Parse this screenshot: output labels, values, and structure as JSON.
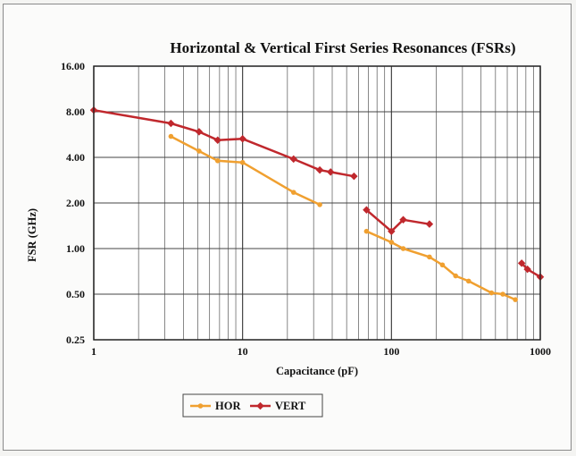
{
  "chart_data": {
    "type": "line",
    "title": "Horizontal & Vertical First Series Resonances (FSRs)",
    "xlabel": "Capacitance (pF)",
    "ylabel": "FSR (GHz)",
    "x_scale": "log",
    "y_scale": "log",
    "xlim": [
      1,
      1000
    ],
    "ylim": [
      0.25,
      16
    ],
    "x_ticks": [
      1,
      10,
      100,
      1000
    ],
    "x_tick_labels": [
      "1",
      "10",
      "100",
      "1000"
    ],
    "y_ticks": [
      0.25,
      0.5,
      1,
      2,
      4,
      8,
      16
    ],
    "y_tick_labels": [
      "0.25",
      "0.50",
      "1.00",
      "2.00",
      "4.00",
      "8.00",
      "16.00"
    ],
    "grid": true,
    "legend_position": "bottom-left",
    "series": [
      {
        "name": "HOR",
        "color": "#f0a030",
        "segments": [
          [
            [
              3.3,
              5.5
            ],
            [
              5.1,
              4.4
            ],
            [
              6.8,
              3.8
            ],
            [
              10,
              3.7
            ],
            [
              22,
              2.35
            ],
            [
              33,
              1.95
            ]
          ],
          [
            [
              68,
              1.3
            ],
            [
              100,
              1.1
            ],
            [
              120,
              1.0
            ],
            [
              180,
              0.88
            ],
            [
              220,
              0.78
            ],
            [
              270,
              0.66
            ],
            [
              330,
              0.61
            ],
            [
              470,
              0.51
            ],
            [
              560,
              0.5
            ],
            [
              680,
              0.46
            ]
          ]
        ]
      },
      {
        "name": "VERT",
        "color": "#c0282d",
        "segments": [
          [
            [
              1,
              8.2
            ],
            [
              3.3,
              6.7
            ],
            [
              5.1,
              5.9
            ],
            [
              6.8,
              5.2
            ],
            [
              10,
              5.3
            ],
            [
              22,
              3.9
            ],
            [
              33,
              3.3
            ],
            [
              39,
              3.2
            ],
            [
              56,
              3.0
            ]
          ],
          [
            [
              68,
              1.8
            ],
            [
              100,
              1.3
            ],
            [
              120,
              1.55
            ],
            [
              180,
              1.45
            ]
          ],
          [
            [
              750,
              0.8
            ],
            [
              820,
              0.73
            ],
            [
              1000,
              0.65
            ]
          ]
        ]
      }
    ]
  }
}
